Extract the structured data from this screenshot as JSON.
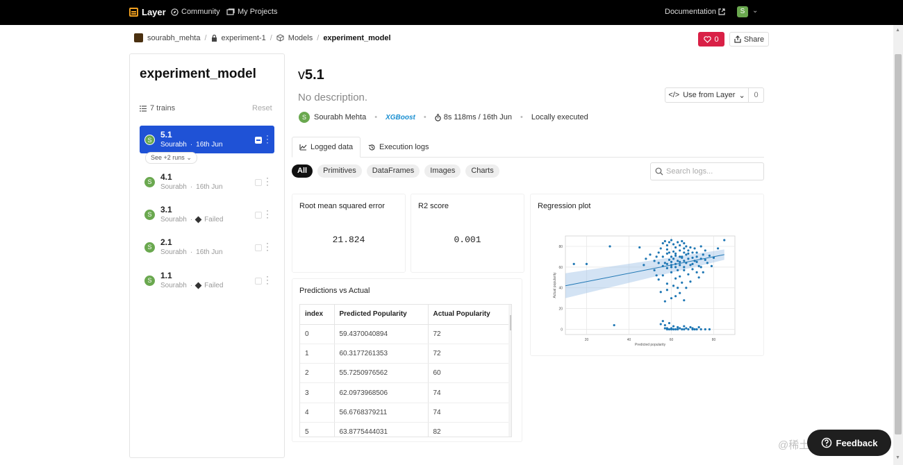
{
  "topnav": {
    "brand": "Layer",
    "community": "Community",
    "projects": "My Projects",
    "documentation": "Documentation",
    "user_initial": "S"
  },
  "breadcrumb": {
    "user": "sourabh_mehta",
    "project": "experiment-1",
    "section": "Models",
    "current": "experiment_model"
  },
  "actions": {
    "likes": "0",
    "share": "Share"
  },
  "sidebar": {
    "title": "experiment_model",
    "trains": "7 trains",
    "reset": "Reset",
    "see_more": "See +2 runs",
    "runs": [
      {
        "version": "5.1",
        "user": "Sourabh",
        "status": "16th Jun",
        "avatar": "S"
      },
      {
        "version": "4.1",
        "user": "Sourabh",
        "status": "16th Jun",
        "avatar": "S"
      },
      {
        "version": "3.1",
        "user": "Sourabh",
        "status": "Failed",
        "avatar": "S"
      },
      {
        "version": "2.1",
        "user": "Sourabh",
        "status": "16th Jun",
        "avatar": "S"
      },
      {
        "version": "1.1",
        "user": "Sourabh",
        "status": "Failed",
        "avatar": "S"
      }
    ]
  },
  "main": {
    "version_prefix": "v",
    "version": "5.1",
    "description": "No description.",
    "use_from_layer": "Use from Layer",
    "use_count": "0",
    "owner": "Sourabh Mehta",
    "owner_initial": "S",
    "framework": "XGBoost",
    "duration": "8s 118ms / 16th Jun",
    "execution": "Locally executed",
    "tabs": [
      "Logged data",
      "Execution logs"
    ],
    "filters": [
      "All",
      "Primitives",
      "DataFrames",
      "Images",
      "Charts"
    ],
    "search_placeholder": "Search logs..."
  },
  "metrics": {
    "rmse_label": "Root mean squared error",
    "rmse_value": "21.824",
    "r2_label": "R2 score",
    "r2_value": "0.001"
  },
  "predictions": {
    "title": "Predictions vs Actual",
    "columns": [
      "index",
      "Predicted Popularity",
      "Actual Popularity"
    ],
    "rows": [
      [
        "0",
        "59.4370040894",
        "72"
      ],
      [
        "1",
        "60.3177261353",
        "72"
      ],
      [
        "2",
        "55.7250976562",
        "60"
      ],
      [
        "3",
        "62.0973968506",
        "74"
      ],
      [
        "4",
        "56.6768379211",
        "74"
      ],
      [
        "5",
        "63.8775444031",
        "82"
      ]
    ]
  },
  "chart_data": {
    "type": "scatter",
    "title": "Regression plot",
    "xlabel": "Predicted popularity",
    "ylabel": "Actual popularity",
    "xlim": [
      10,
      90
    ],
    "ylim": [
      -5,
      90
    ],
    "xticks": [
      20,
      40,
      60,
      80
    ],
    "yticks": [
      0,
      20,
      40,
      60,
      80
    ],
    "grid": true,
    "color": "#1f77b4",
    "fit_line": {
      "x": [
        10,
        85
      ],
      "y": [
        42,
        72
      ]
    },
    "points": [
      [
        14,
        63
      ],
      [
        20,
        63
      ],
      [
        31,
        80
      ],
      [
        33,
        4
      ],
      [
        45,
        79
      ],
      [
        47,
        62
      ],
      [
        52,
        57
      ],
      [
        53,
        52
      ],
      [
        55,
        36
      ],
      [
        57,
        27
      ],
      [
        58,
        73
      ],
      [
        59,
        74
      ],
      [
        60,
        70
      ],
      [
        61,
        68
      ],
      [
        62,
        71
      ],
      [
        63,
        66
      ],
      [
        64,
        76
      ],
      [
        65,
        69
      ],
      [
        66,
        60
      ],
      [
        67,
        72
      ],
      [
        56,
        61
      ],
      [
        57,
        64
      ],
      [
        58,
        59
      ],
      [
        59,
        67
      ],
      [
        60,
        62
      ],
      [
        61,
        75
      ],
      [
        62,
        63
      ],
      [
        63,
        57
      ],
      [
        64,
        65
      ],
      [
        65,
        70
      ],
      [
        66,
        78
      ],
      [
        67,
        64
      ],
      [
        68,
        73
      ],
      [
        69,
        62
      ],
      [
        70,
        69
      ],
      [
        71,
        66
      ],
      [
        72,
        74
      ],
      [
        73,
        61
      ],
      [
        74,
        68
      ],
      [
        75,
        72
      ],
      [
        53,
        70
      ],
      [
        54,
        64
      ],
      [
        55,
        78
      ],
      [
        56,
        83
      ],
      [
        57,
        85
      ],
      [
        58,
        81
      ],
      [
        59,
        84
      ],
      [
        60,
        86
      ],
      [
        61,
        82
      ],
      [
        62,
        79
      ],
      [
        63,
        84
      ],
      [
        64,
        81
      ],
      [
        65,
        85
      ],
      [
        66,
        83
      ],
      [
        67,
        80
      ],
      [
        68,
        76
      ],
      [
        69,
        79
      ],
      [
        70,
        74
      ],
      [
        71,
        78
      ],
      [
        72,
        70
      ],
      [
        54,
        48
      ],
      [
        56,
        52
      ],
      [
        58,
        44
      ],
      [
        60,
        55
      ],
      [
        62,
        49
      ],
      [
        64,
        51
      ],
      [
        66,
        57
      ],
      [
        68,
        53
      ],
      [
        70,
        58
      ],
      [
        72,
        55
      ],
      [
        58,
        63
      ],
      [
        60,
        65
      ],
      [
        62,
        60
      ],
      [
        64,
        62
      ],
      [
        66,
        66
      ],
      [
        68,
        68
      ],
      [
        70,
        63
      ],
      [
        72,
        65
      ],
      [
        74,
        60
      ],
      [
        76,
        67
      ],
      [
        48,
        68
      ],
      [
        50,
        72
      ],
      [
        52,
        66
      ],
      [
        54,
        74
      ],
      [
        56,
        70
      ],
      [
        58,
        77
      ],
      [
        60,
        60
      ],
      [
        62,
        73
      ],
      [
        64,
        70
      ],
      [
        66,
        74
      ],
      [
        74,
        80
      ],
      [
        76,
        76
      ],
      [
        78,
        71
      ],
      [
        80,
        69
      ],
      [
        82,
        78
      ],
      [
        85,
        86
      ],
      [
        77,
        64
      ],
      [
        79,
        61
      ],
      [
        75,
        55
      ],
      [
        73,
        50
      ],
      [
        58,
        38
      ],
      [
        61,
        42
      ],
      [
        63,
        40
      ],
      [
        65,
        45
      ],
      [
        67,
        40
      ],
      [
        69,
        46
      ],
      [
        62,
        32
      ],
      [
        64,
        35
      ],
      [
        66,
        28
      ],
      [
        60,
        30
      ],
      [
        55,
        5
      ],
      [
        56,
        8
      ],
      [
        57,
        1
      ],
      [
        58,
        0
      ],
      [
        59,
        0
      ],
      [
        60,
        1
      ],
      [
        61,
        0
      ],
      [
        62,
        0
      ],
      [
        63,
        0
      ],
      [
        64,
        1
      ],
      [
        65,
        0
      ],
      [
        66,
        0
      ],
      [
        67,
        1
      ],
      [
        68,
        0
      ],
      [
        69,
        2
      ],
      [
        70,
        0
      ],
      [
        71,
        0
      ],
      [
        72,
        0
      ],
      [
        73,
        2
      ],
      [
        74,
        0
      ],
      [
        57,
        4
      ],
      [
        59,
        6
      ],
      [
        61,
        3
      ],
      [
        63,
        2
      ],
      [
        66,
        3
      ],
      [
        70,
        1
      ],
      [
        76,
        0
      ],
      [
        78,
        0
      ],
      [
        60,
        0
      ],
      [
        58,
        1
      ]
    ]
  }
}
